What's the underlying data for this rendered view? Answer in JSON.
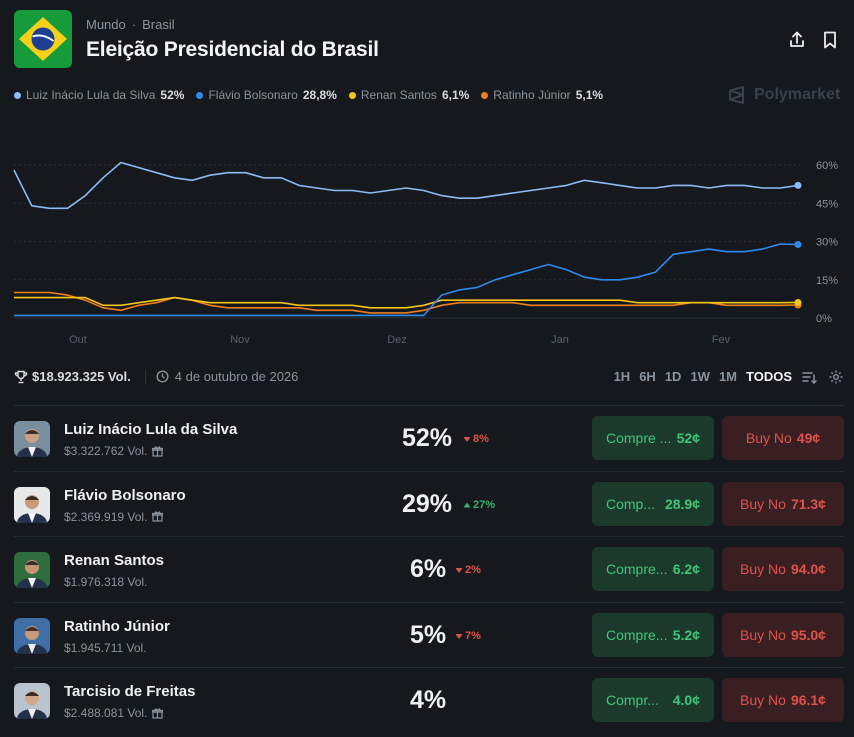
{
  "header": {
    "breadcrumb": [
      "Mundo",
      "Brasil"
    ],
    "breadcrumb_sep": "·",
    "title": "Eleição Presidencial do Brasil",
    "share_icon": "share-icon",
    "bookmark_icon": "bookmark-icon"
  },
  "legend": [
    {
      "name": "Luiz Inácio Lula da Silva",
      "pct": "52%",
      "color": "#8bbcf6"
    },
    {
      "name": "Flávio Bolsonaro",
      "pct": "28,8%",
      "color": "#2d8bf0"
    },
    {
      "name": "Renan Santos",
      "pct": "6,1%",
      "color": "#f5c518"
    },
    {
      "name": "Ratinho Júnior",
      "pct": "5,1%",
      "color": "#f07f1a"
    }
  ],
  "brand": "Polymarket",
  "chart_data": {
    "type": "line",
    "x_ticks": [
      "Out",
      "Nov",
      "Dez",
      "Jan",
      "Fev"
    ],
    "y_ticks": [
      "60%",
      "45%",
      "30%",
      "15%",
      "0%"
    ],
    "ylim": [
      0,
      65
    ],
    "series": [
      {
        "name": "Luiz Inácio Lula da Silva",
        "color": "#8bbcf6",
        "values": [
          58,
          44,
          43,
          43,
          48,
          55,
          61,
          59,
          57,
          55,
          54,
          56,
          57,
          57,
          55,
          55,
          52,
          51,
          50,
          50,
          49,
          50,
          51,
          50,
          48,
          47,
          47,
          48,
          49,
          50,
          51,
          52,
          54,
          53,
          52,
          51,
          51,
          52,
          52,
          51,
          52,
          52,
          51,
          51,
          52
        ]
      },
      {
        "name": "Flávio Bolsonaro",
        "color": "#2d8bf0",
        "values": [
          1,
          1,
          1,
          1,
          1,
          1,
          1,
          1,
          1,
          1,
          1,
          1,
          1,
          1,
          1,
          1,
          1,
          1,
          1,
          1,
          1,
          1,
          1,
          1,
          9,
          11,
          12,
          15,
          17,
          19,
          21,
          19,
          16,
          15,
          15,
          16,
          18,
          25,
          26,
          27,
          26,
          26,
          27,
          29,
          28.8
        ]
      },
      {
        "name": "Renan Santos",
        "color": "#f5c518",
        "values": [
          8,
          8,
          8,
          8,
          8,
          5,
          5,
          6,
          7,
          8,
          7,
          6,
          6,
          6,
          6,
          6,
          5,
          5,
          5,
          5,
          4,
          4,
          4,
          5,
          7,
          7,
          7,
          7,
          7,
          7,
          7,
          7,
          7,
          7,
          7,
          6,
          6,
          6,
          6,
          6,
          6,
          6,
          6,
          6,
          6.1
        ]
      },
      {
        "name": "Ratinho Júnior",
        "color": "#f07f1a",
        "values": [
          10,
          10,
          10,
          9,
          7,
          4,
          3,
          5,
          6,
          8,
          7,
          5,
          4,
          4,
          4,
          4,
          4,
          3,
          3,
          3,
          2,
          2,
          2,
          3,
          5,
          6,
          6,
          6,
          6,
          5,
          5,
          5,
          5,
          5,
          5,
          5,
          5,
          5,
          6,
          6,
          5,
          5,
          5,
          5,
          5.1
        ]
      }
    ]
  },
  "stats": {
    "volume": "$18.923.325 Vol.",
    "date": "4 de outubro de 2026",
    "trophy_icon": "trophy-icon",
    "clock_icon": "clock-icon"
  },
  "ranges": [
    "1H",
    "6H",
    "1D",
    "1W",
    "1M",
    "TODOS"
  ],
  "active_range": "TODOS",
  "candidates": [
    {
      "name": "Luiz Inácio Lula da Silva",
      "volume": "$3.322.762 Vol.",
      "gift": true,
      "pct": "52%",
      "change": "8%",
      "dir": "down",
      "yes_label": "Compre ...",
      "yes_price": "52¢",
      "no_label": "Buy No",
      "no_price": "49¢",
      "avatar_bg": "#7a8f9e",
      "avatar_skin": "#c9a182"
    },
    {
      "name": "Flávio Bolsonaro",
      "volume": "$2.369.919 Vol.",
      "gift": true,
      "pct": "29%",
      "change": "27%",
      "dir": "up",
      "yes_label": "Comp...",
      "yes_price": "28.9¢",
      "no_label": "Buy No",
      "no_price": "71.3¢",
      "avatar_bg": "#e6e8ea",
      "avatar_skin": "#c89a7a"
    },
    {
      "name": "Renan Santos",
      "volume": "$1.976.318 Vol.",
      "gift": false,
      "pct": "6%",
      "change": "2%",
      "dir": "down",
      "yes_label": "Compre...",
      "yes_price": "6.2¢",
      "no_label": "Buy No",
      "no_price": "94.0¢",
      "avatar_bg": "#2f6d3c",
      "avatar_skin": "#c49474"
    },
    {
      "name": "Ratinho Júnior",
      "volume": "$1.945.711 Vol.",
      "gift": false,
      "pct": "5%",
      "change": "7%",
      "dir": "down",
      "yes_label": "Compre...",
      "yes_price": "5.2¢",
      "no_label": "Buy No",
      "no_price": "95.0¢",
      "avatar_bg": "#3f6fa6",
      "avatar_skin": "#c89a7a"
    },
    {
      "name": "Tarcisio de Freitas",
      "volume": "$2.488.081 Vol.",
      "gift": true,
      "pct": "4%",
      "change": "",
      "dir": "",
      "yes_label": "Compr...",
      "yes_price": "4.0¢",
      "no_label": "Buy No",
      "no_price": "96.1¢",
      "avatar_bg": "#b9c4cf",
      "avatar_skin": "#d0a888"
    }
  ]
}
